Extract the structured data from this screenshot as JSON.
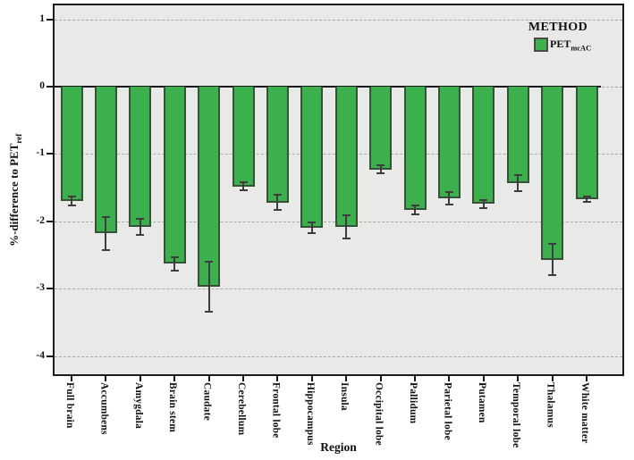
{
  "chart_data": {
    "type": "bar",
    "title": "",
    "xlabel": "Region",
    "ylabel": "%-difference to PET",
    "ylabel_subscript": "ref",
    "ylim": [
      1.25,
      -4.3
    ],
    "grid": "dashed horizontal gridlines at integer ticks, solid line at 0",
    "legend": {
      "title": "METHOD",
      "position": "top-right-inside",
      "entries": [
        {
          "label": "PET",
          "label_subscript": "mcAC",
          "color": "#3cb04d"
        }
      ]
    },
    "yticks": [
      {
        "label": "1",
        "value": 1
      },
      {
        "label": "0",
        "value": 0
      },
      {
        "label": "-1",
        "value": -1
      },
      {
        "label": "-2",
        "value": -2
      },
      {
        "label": "-3",
        "value": -3
      },
      {
        "label": "-4",
        "value": -4
      }
    ],
    "categories": [
      "Full brain",
      "Accumbens",
      "Amygdala",
      "Brain stem",
      "Caudate",
      "Cerebellum",
      "Frontal lobe",
      "Hippocampus",
      "Insula",
      "Occipital lobe",
      "Pallidum",
      "Parietal lobe",
      "Putamen",
      "Temporal lobe",
      "Thalamus",
      "White matter"
    ],
    "series": [
      {
        "name": "PET_mcAC",
        "values": [
          -1.7,
          -2.18,
          -2.08,
          -2.63,
          -2.97,
          -1.48,
          -1.72,
          -2.1,
          -2.08,
          -1.23,
          -1.83,
          -1.66,
          -1.74,
          -1.43,
          -2.57,
          -1.67
        ],
        "errors": [
          0.07,
          0.25,
          0.12,
          0.1,
          0.37,
          0.06,
          0.11,
          0.08,
          0.17,
          0.06,
          0.06,
          0.09,
          0.06,
          0.12,
          0.23,
          0.04
        ]
      }
    ],
    "colors": {
      "bar_fill": "#3cb04d",
      "bar_border": "#37503a",
      "plot_background": "#e9e9e7",
      "gridline": "#a9a9a9",
      "zero_line": "#161616",
      "error_bar": "#3d3d3d",
      "text": "#111111"
    }
  }
}
